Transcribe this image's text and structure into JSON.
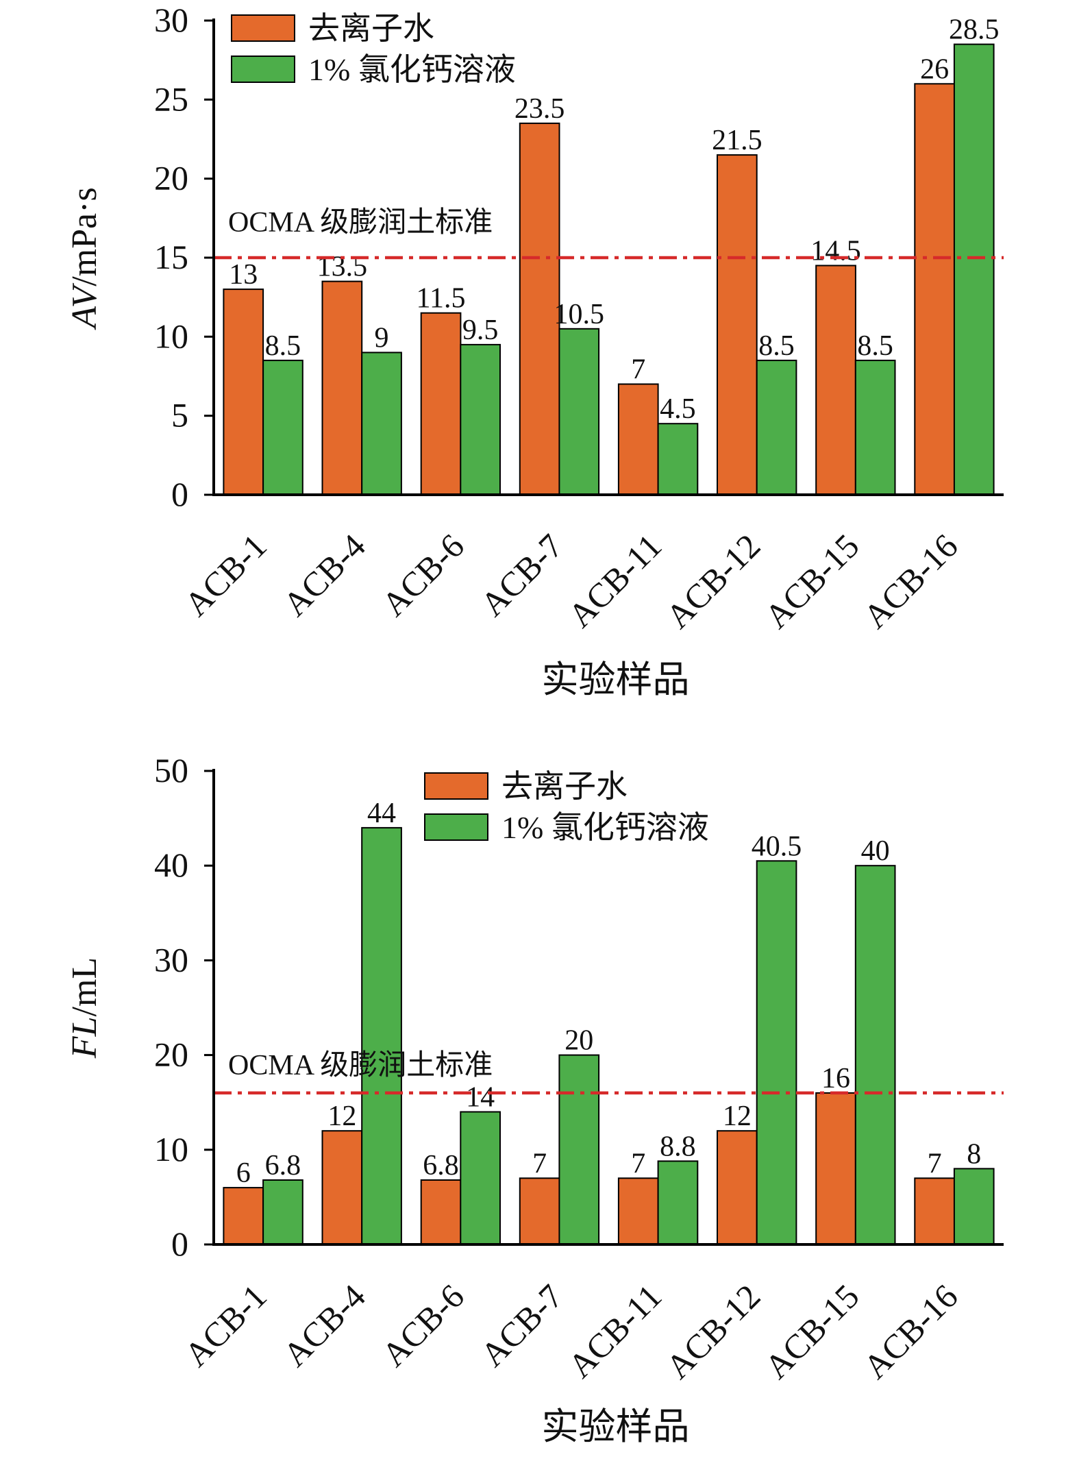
{
  "chart_data": [
    {
      "type": "bar",
      "xlabel": "实验样品",
      "ylabel": "AV/mPa·s",
      "ylabel_italic": "AV",
      "ylabel_rest": "/mPa·s",
      "ylim": [
        0,
        30
      ],
      "yticks": [
        "0",
        "5",
        "10",
        "15",
        "20",
        "25",
        "30"
      ],
      "categories": [
        "ACB-1",
        "ACB-4",
        "ACB-6",
        "ACB-7",
        "ACB-11",
        "ACB-12",
        "ACB-15",
        "ACB-16"
      ],
      "series": [
        {
          "name": "去离子水",
          "color": "#E46A2C",
          "values": [
            13,
            13.5,
            11.5,
            23.5,
            7,
            21.5,
            14.5,
            26
          ],
          "labels": [
            "13",
            "13.5",
            "11.5",
            "23.5",
            "7",
            "21.5",
            "14.5",
            "26"
          ]
        },
        {
          "name": "1% 氯化钙溶液",
          "color": "#4DAE4A",
          "values": [
            8.5,
            9,
            9.5,
            10.5,
            4.5,
            8.5,
            8.5,
            28.5
          ],
          "labels": [
            "8.5",
            "9",
            "9.5",
            "10.5",
            "4.5",
            "8.5",
            "8.5",
            "28.5"
          ]
        }
      ],
      "reference_line": {
        "label": "OCMA 级膨润土标准",
        "value": 15,
        "color": "#D62A2A",
        "style": "dash-dot"
      },
      "legend_position": "top-left",
      "grid": false
    },
    {
      "type": "bar",
      "xlabel": "实验样品",
      "ylabel": "FL/mL",
      "ylabel_italic": "FL",
      "ylabel_rest": "/mL",
      "ylim": [
        0,
        50
      ],
      "yticks": [
        "0",
        "10",
        "20",
        "30",
        "40",
        "50"
      ],
      "categories": [
        "ACB-1",
        "ACB-4",
        "ACB-6",
        "ACB-7",
        "ACB-11",
        "ACB-12",
        "ACB-15",
        "ACB-16"
      ],
      "series": [
        {
          "name": "去离子水",
          "color": "#E46A2C",
          "values": [
            6,
            12,
            6.8,
            7,
            7,
            12,
            16,
            7
          ],
          "labels": [
            "6",
            "12",
            "6.8",
            "7",
            "7",
            "12",
            "16",
            "7"
          ]
        },
        {
          "name": "1% 氯化钙溶液",
          "color": "#4DAE4A",
          "values": [
            6.8,
            44,
            14,
            20,
            8.8,
            40.5,
            40,
            8
          ],
          "labels": [
            "6.8",
            "44",
            "14",
            "20",
            "8.8",
            "40.5",
            "40",
            "8"
          ]
        }
      ],
      "reference_line": {
        "label": "OCMA 级膨润土标准",
        "value": 16,
        "color": "#D62A2A",
        "style": "dash-dot"
      },
      "legend_position": "top-center",
      "grid": false
    }
  ]
}
